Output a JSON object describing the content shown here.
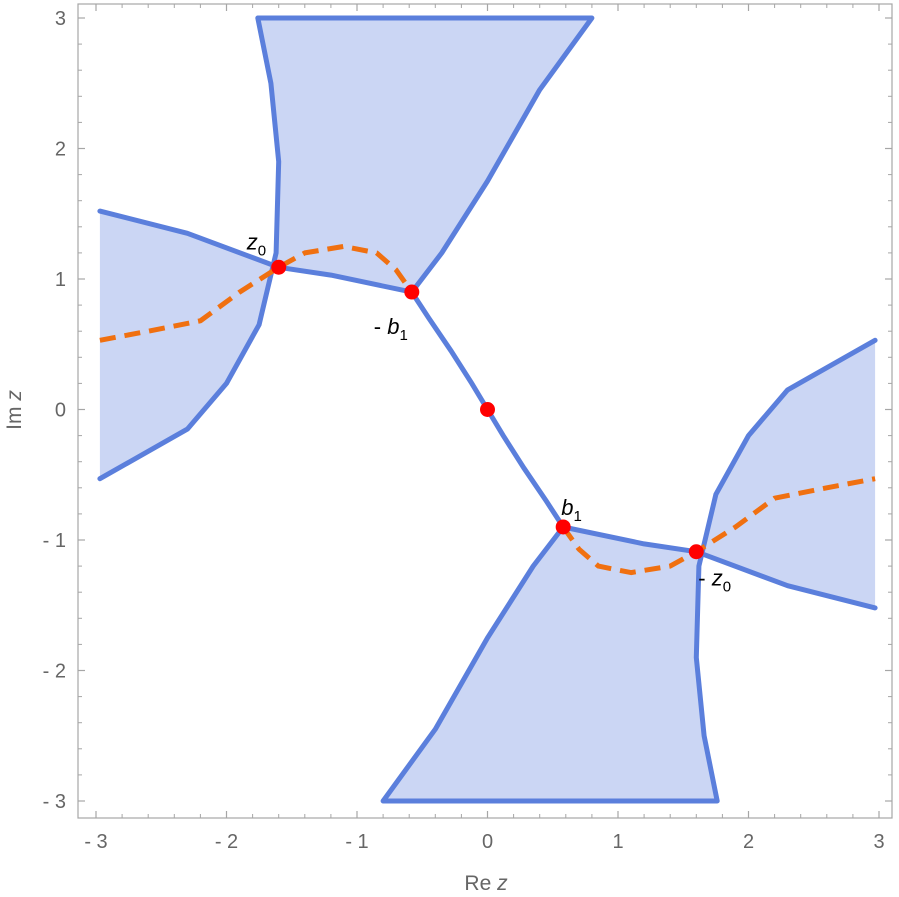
{
  "chart_data": {
    "type": "scatter",
    "xlabel": "Re z",
    "ylabel": "Im z",
    "xlim": [
      -3,
      3
    ],
    "ylim": [
      -3,
      3
    ],
    "x_ticks": [
      "- 3",
      "- 2",
      "- 1",
      "0",
      "1",
      "2",
      "3"
    ],
    "y_ticks": [
      "- 3",
      "- 2",
      "- 1",
      "0",
      "1",
      "2",
      "3"
    ],
    "grid": false,
    "colors": {
      "region_fill": "#cbd6f4",
      "boundary": "#5b7fdc",
      "dashed_path": "#f07010",
      "points": "#ff0000"
    },
    "shaded_regions": [
      {
        "boundary": [
          [
            -2.97,
            1.52
          ],
          [
            -2.3,
            1.35
          ],
          [
            -1.6,
            1.09
          ],
          [
            -1.2,
            1.03
          ],
          [
            -0.58,
            0.9
          ],
          [
            -0.35,
            1.2
          ],
          [
            0.0,
            1.75
          ],
          [
            0.4,
            2.45
          ],
          [
            0.8,
            3.0
          ],
          [
            -1.76,
            3.0
          ],
          [
            -1.66,
            2.5
          ],
          [
            -1.6,
            1.9
          ],
          [
            -1.62,
            1.2
          ],
          [
            -1.75,
            0.65
          ],
          [
            -2.0,
            0.2
          ],
          [
            -2.3,
            -0.15
          ],
          [
            -2.97,
            -0.53
          ]
        ]
      },
      {
        "boundary": [
          [
            2.97,
            -1.52
          ],
          [
            2.3,
            -1.35
          ],
          [
            1.6,
            -1.09
          ],
          [
            1.2,
            -1.03
          ],
          [
            0.58,
            -0.9
          ],
          [
            0.35,
            -1.2
          ],
          [
            0.0,
            -1.75
          ],
          [
            -0.4,
            -2.45
          ],
          [
            -0.8,
            -3.0
          ],
          [
            1.76,
            -3.0
          ],
          [
            1.66,
            -2.5
          ],
          [
            1.6,
            -1.9
          ],
          [
            1.62,
            -1.2
          ],
          [
            1.75,
            -0.65
          ],
          [
            2.0,
            -0.2
          ],
          [
            2.3,
            0.15
          ],
          [
            2.97,
            0.53
          ]
        ]
      }
    ],
    "central_curve": [
      [
        -0.58,
        0.9
      ],
      [
        -0.45,
        0.7
      ],
      [
        -0.28,
        0.45
      ],
      [
        -0.12,
        0.2
      ],
      [
        0.0,
        0.0
      ],
      [
        0.12,
        -0.2
      ],
      [
        0.28,
        -0.45
      ],
      [
        0.45,
        -0.7
      ],
      [
        0.58,
        -0.9
      ]
    ],
    "dashed_path": [
      [
        -2.97,
        0.53
      ],
      [
        -2.6,
        0.6
      ],
      [
        -2.2,
        0.68
      ],
      [
        -1.9,
        0.9
      ],
      [
        -1.6,
        1.09
      ],
      [
        -1.4,
        1.2
      ],
      [
        -1.1,
        1.25
      ],
      [
        -0.85,
        1.2
      ],
      [
        -0.7,
        1.07
      ],
      [
        -0.58,
        0.9
      ],
      [
        -0.58,
        0.9
      ],
      null,
      [
        0.58,
        -0.9
      ],
      [
        0.7,
        -1.07
      ],
      [
        0.85,
        -1.2
      ],
      [
        1.1,
        -1.25
      ],
      [
        1.4,
        -1.2
      ],
      [
        1.6,
        -1.09
      ],
      [
        1.9,
        -0.9
      ],
      [
        2.2,
        -0.68
      ],
      [
        2.6,
        -0.6
      ],
      [
        2.97,
        -0.53
      ]
    ],
    "points": [
      {
        "label": "z",
        "sub": "0",
        "prefix": "",
        "x": -1.6,
        "y": 1.09,
        "anchor": "above-left"
      },
      {
        "label": "b",
        "sub": "1",
        "prefix": "- ",
        "x": -0.58,
        "y": 0.9,
        "anchor": "below-left"
      },
      {
        "label": "",
        "sub": "",
        "prefix": "",
        "x": 0.0,
        "y": 0.0,
        "anchor": "none"
      },
      {
        "label": "b",
        "sub": "1",
        "prefix": "",
        "x": 0.58,
        "y": -0.9,
        "anchor": "above-right"
      },
      {
        "label": "z",
        "sub": "0",
        "prefix": "- ",
        "x": 1.6,
        "y": -1.09,
        "anchor": "below-right"
      }
    ]
  }
}
